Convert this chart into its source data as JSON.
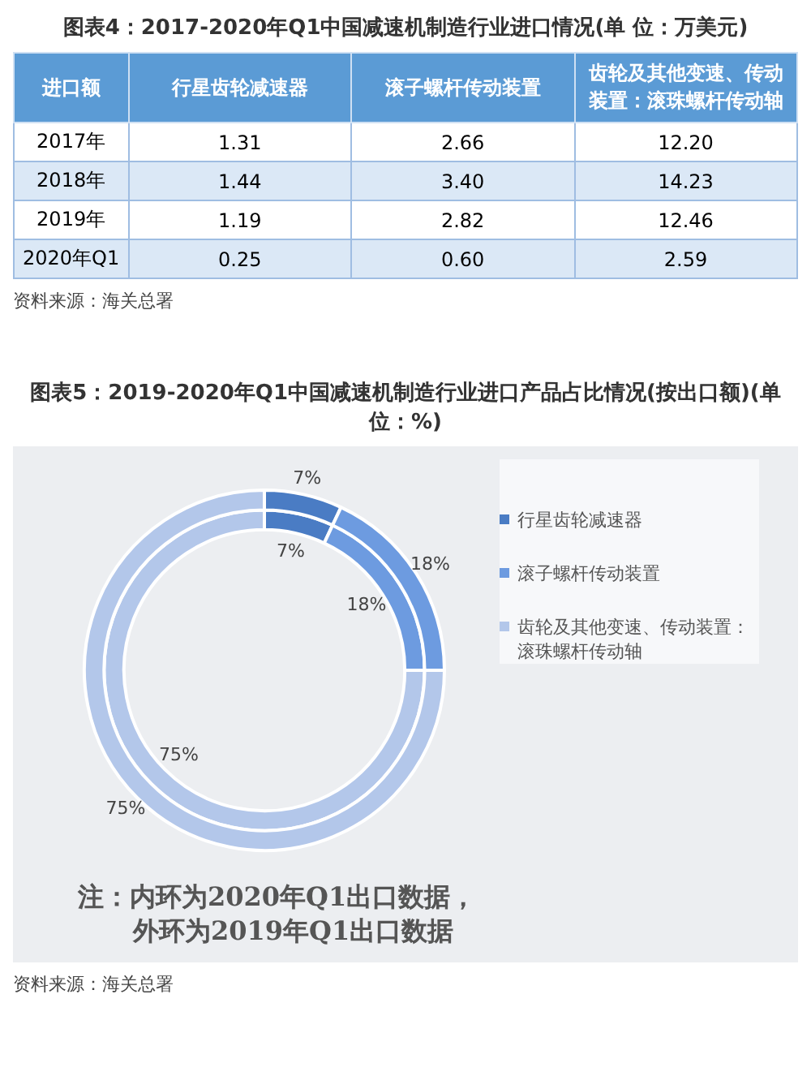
{
  "chart_data": [
    {
      "type": "other",
      "title": "图表4：2017-2020年Q1中国减速机制造行业进口情况(单 位：万美元)",
      "ylabel": "进口额",
      "categories": [
        "2017年",
        "2018年",
        "2019年",
        "2020年Q1"
      ],
      "series": [
        {
          "name": "行星齿轮减速器",
          "values": [
            1.31,
            1.44,
            1.19,
            0.25
          ],
          "value_labels": [
            "1.31",
            "1.44",
            "1.19",
            "0.25"
          ],
          "colors": [
            "#ffffff",
            "#dbe8f6",
            "#ffffff",
            "#dbe8f6"
          ]
        },
        {
          "name": "滚子螺杆传动装置",
          "values": [
            2.66,
            3.4,
            2.82,
            0.6
          ],
          "value_labels": [
            "2.66",
            "3.40",
            "2.82",
            "0.60"
          ],
          "colors": [
            "#ffffff",
            "#dbe8f6",
            "#ffffff",
            "#dbe8f6"
          ]
        },
        {
          "name": "齿轮及其他变速、传动装置：滚珠螺杆传动轴",
          "values": [
            12.2,
            14.23,
            12.46,
            2.59
          ],
          "value_labels": [
            "12.20",
            "14.23",
            "12.46",
            "2.59"
          ],
          "colors": [
            "#ffffff",
            "#dbe8f6",
            "#ffffff",
            "#dbe8f6"
          ]
        }
      ],
      "annotations": [
        "资料来源：海关总署"
      ]
    },
    {
      "type": "donut",
      "title": "图表5：2019-2020年Q1中国减速机制造行业进口产品占比情况(按出口额)(单位：%)",
      "categories": [
        "行星齿轮减速器",
        "滚子螺杆传动装置",
        "齿轮及其他变速、传动装置：滚珠螺杆传动轴"
      ],
      "colors": [
        "#4a7cc4",
        "#6d9be0",
        "#b3c7ea"
      ],
      "series": [
        {
          "values": [
            7,
            18,
            75
          ],
          "value_labels": [
            "7%",
            "18%",
            "75%"
          ]
        },
        {
          "values": [
            7,
            18,
            75
          ],
          "value_labels": [
            "7%",
            "18%",
            "75%"
          ]
        }
      ],
      "legend": "right",
      "annotations": [
        "注：内环为2020年Q1出口数据，",
        "外环为2019年Q1出口数据",
        "资料来源：海关总署"
      ]
    }
  ]
}
